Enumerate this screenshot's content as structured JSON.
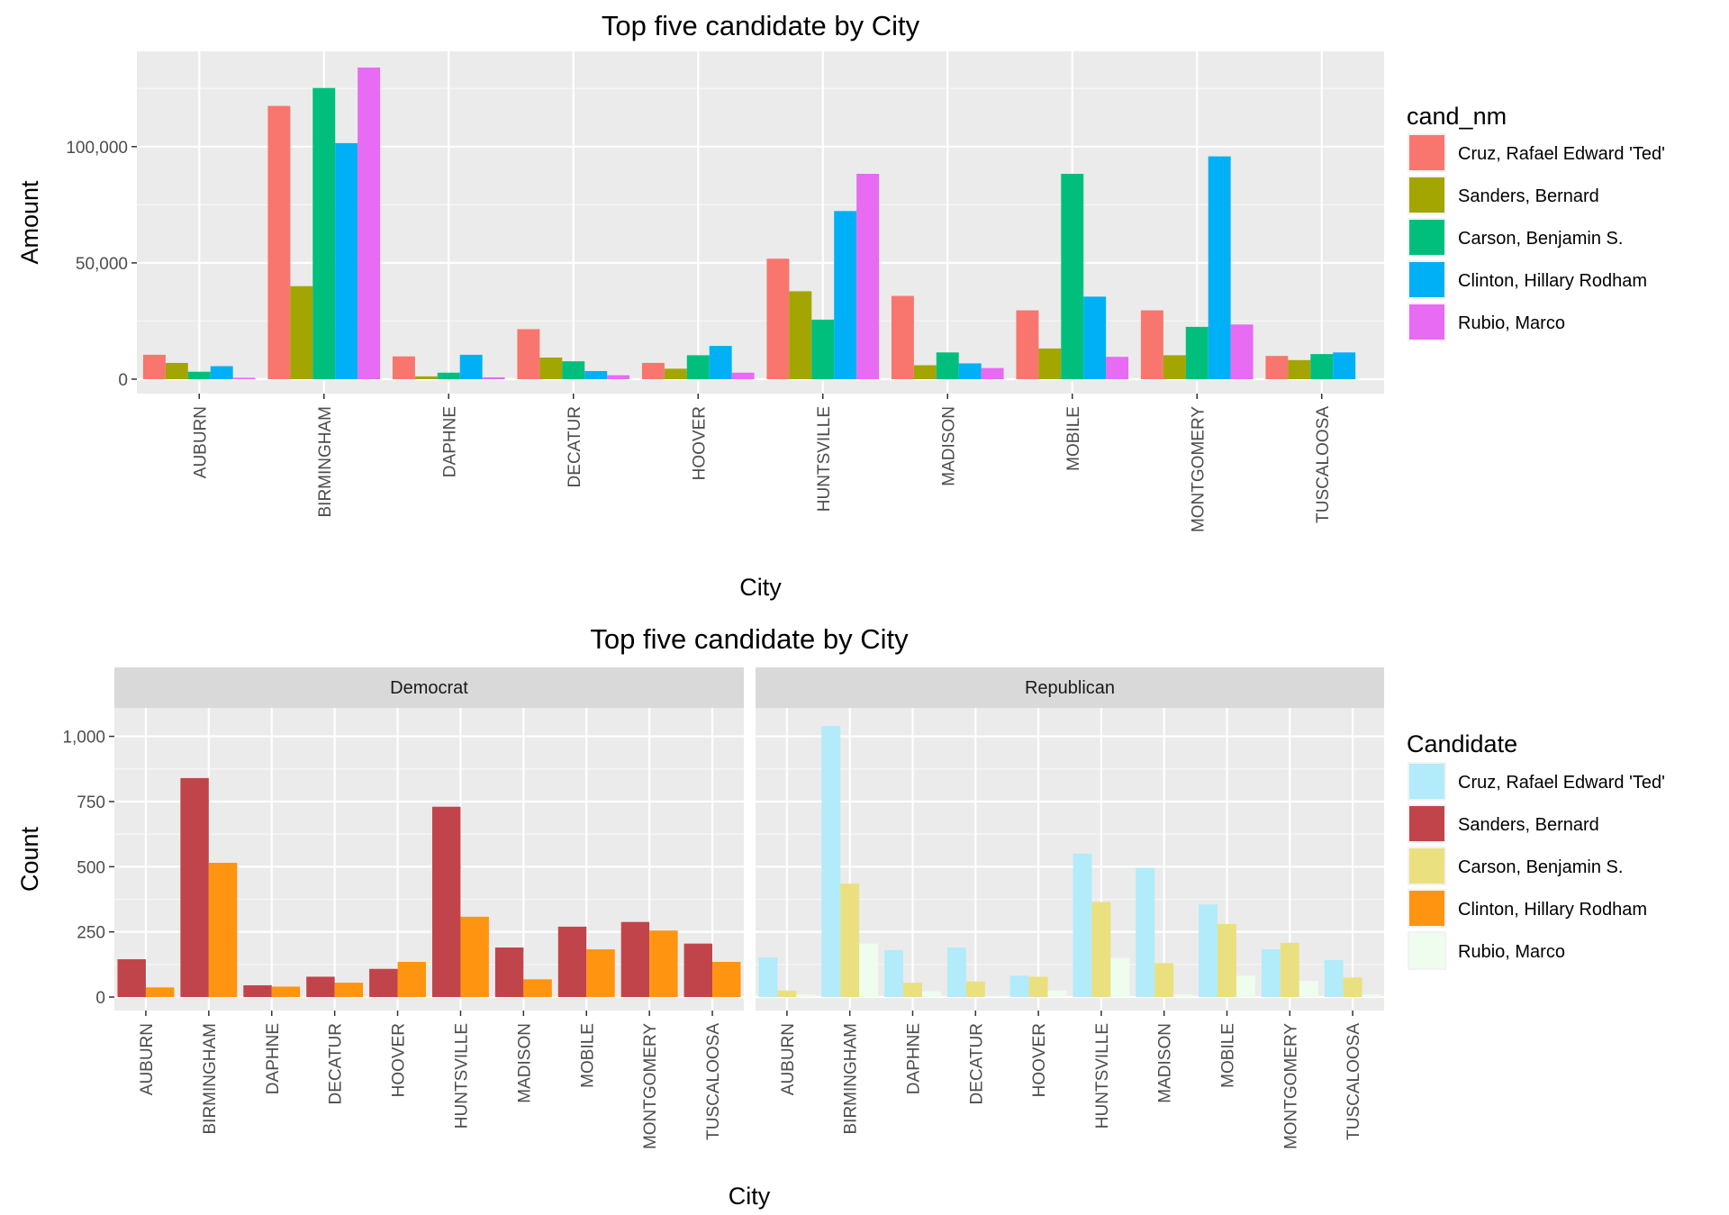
{
  "chart_data": [
    {
      "type": "bar",
      "title": "Top five candidate by City",
      "xlabel": "City",
      "ylabel": "Amount",
      "ylim": [
        0,
        134000
      ],
      "y_ticks": [
        0,
        50000,
        100000
      ],
      "y_tick_labels": [
        "0",
        "50,000",
        "100,000"
      ],
      "categories": [
        "AUBURN",
        "BIRMINGHAM",
        "DAPHNE",
        "DECATUR",
        "HOOVER",
        "HUNTSVILLE",
        "MADISON",
        "MOBILE",
        "MONTGOMERY",
        "TUSCALOOSA"
      ],
      "legend": {
        "title": "cand_nm",
        "placement": "right"
      },
      "grid": true,
      "series": [
        {
          "name": "Cruz, Rafael Edward 'Ted'",
          "color": "#F8766D",
          "values": [
            10500,
            117500,
            9800,
            21500,
            7000,
            51800,
            35800,
            29600,
            29600,
            10000
          ]
        },
        {
          "name": "Sanders, Bernard",
          "color": "#A3A500",
          "values": [
            7000,
            40000,
            1200,
            9300,
            4500,
            37800,
            6000,
            13200,
            10300,
            8200
          ]
        },
        {
          "name": "Carson, Benjamin S.",
          "color": "#00BF7D",
          "values": [
            3200,
            125200,
            2800,
            7700,
            10300,
            25600,
            11500,
            88300,
            22500,
            10800
          ]
        },
        {
          "name": "Clinton, Hillary Rodham",
          "color": "#00B0F6",
          "values": [
            5600,
            101500,
            10500,
            3500,
            14300,
            72300,
            6800,
            35500,
            95800,
            11500
          ]
        },
        {
          "name": "Rubio, Marco",
          "color": "#E76BF3",
          "values": [
            600,
            134000,
            800,
            1700,
            2800,
            88300,
            4800,
            9600,
            23500,
            null
          ]
        }
      ]
    },
    {
      "type": "bar",
      "title": "Top five candidate by City",
      "xlabel": "City",
      "ylabel": "Count",
      "ylim": [
        0,
        1040
      ],
      "y_ticks": [
        0,
        250,
        500,
        750,
        1000
      ],
      "y_tick_labels": [
        "0",
        "250",
        "500",
        "750",
        "1,000"
      ],
      "categories": [
        "AUBURN",
        "BIRMINGHAM",
        "DAPHNE",
        "DECATUR",
        "HOOVER",
        "HUNTSVILLE",
        "MADISON",
        "MOBILE",
        "MONTGOMERY",
        "TUSCALOOSA"
      ],
      "legend": {
        "title": "Candidate",
        "placement": "right"
      },
      "grid": true,
      "facets": [
        {
          "label": "Democrat",
          "series": [
            {
              "name": "Sanders, Bernard",
              "values": [
                145,
                840,
                45,
                78,
                108,
                730,
                190,
                270,
                288,
                205
              ]
            },
            {
              "name": "Clinton, Hillary Rodham",
              "values": [
                37,
                515,
                40,
                55,
                135,
                308,
                68,
                183,
                255,
                135
              ]
            }
          ]
        },
        {
          "label": "Republican",
          "series": [
            {
              "name": "Cruz, Rafael Edward 'Ted'",
              "values": [
                152,
                1040,
                180,
                190,
                82,
                550,
                495,
                355,
                183,
                142
              ]
            },
            {
              "name": "Carson, Benjamin S.",
              "values": [
                25,
                435,
                55,
                60,
                78,
                365,
                130,
                280,
                208,
                75
              ]
            },
            {
              "name": "Rubio, Marco",
              "values": [
                10,
                205,
                22,
                5,
                25,
                150,
                10,
                82,
                62,
                10
              ]
            }
          ]
        }
      ],
      "series_colors": [
        {
          "name": "Cruz, Rafael Edward 'Ted'",
          "color": "#B2EBFA"
        },
        {
          "name": "Sanders, Bernard",
          "color": "#C2444B"
        },
        {
          "name": "Carson, Benjamin S.",
          "color": "#EBE07F"
        },
        {
          "name": "Clinton, Hillary Rodham",
          "color": "#FF9411"
        },
        {
          "name": "Rubio, Marco",
          "color": "#EEFDEE"
        }
      ]
    }
  ]
}
